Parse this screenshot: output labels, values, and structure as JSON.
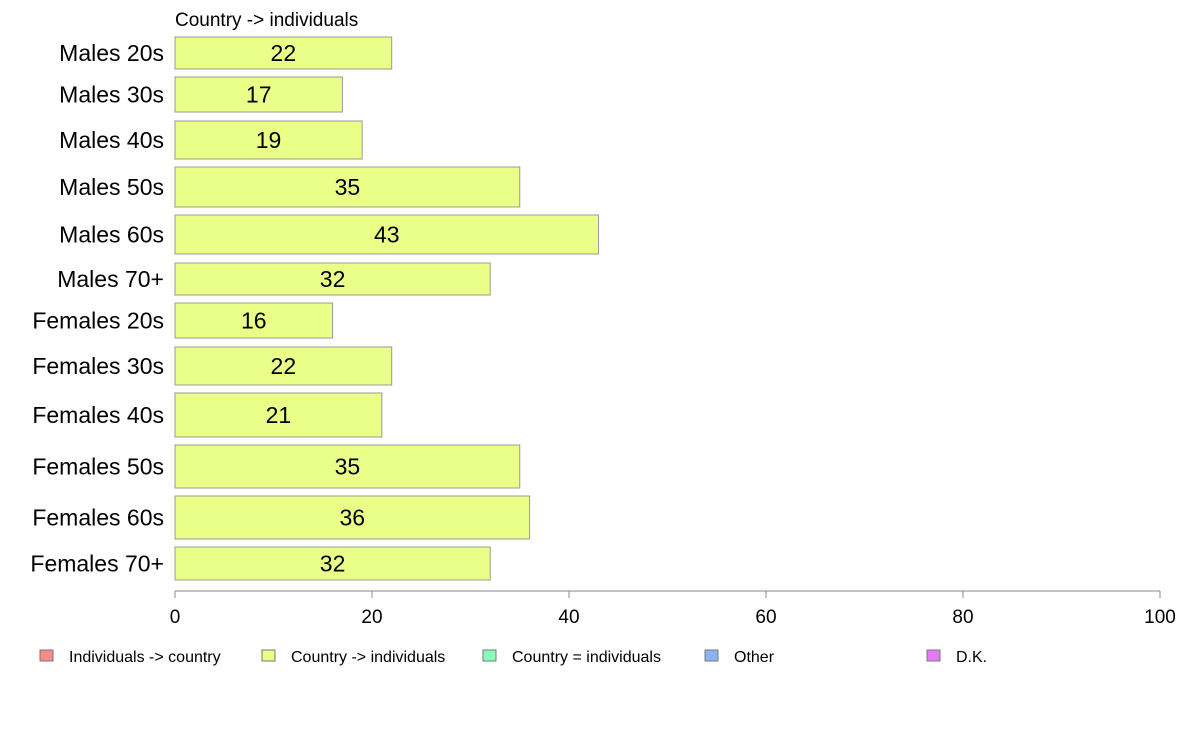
{
  "chart_data": {
    "type": "bar",
    "orientation": "horizontal",
    "panel_title": "Country -> individuals",
    "categories": [
      "Males 20s",
      "Males 30s",
      "Males 40s",
      "Males 50s",
      "Males 60s",
      "Males 70+",
      "Females 20s",
      "Females 30s",
      "Females 40s",
      "Females 50s",
      "Females 60s",
      "Females 70+"
    ],
    "series": [
      {
        "name": "Country -> individuals",
        "color": "#EAFF88",
        "values": [
          22,
          17,
          19,
          35,
          43,
          32,
          16,
          22,
          21,
          35,
          36,
          32
        ],
        "labels": [
          "22",
          "17",
          "19",
          "35",
          "43",
          "32",
          "16",
          "22",
          "21",
          "35",
          "36",
          "32"
        ]
      }
    ],
    "xlim": [
      0,
      100
    ],
    "x_ticks": [
      "0",
      "20",
      "40",
      "60",
      "80",
      "100"
    ],
    "grid": false,
    "legend_position": "bottom",
    "legend": [
      {
        "label": "Individuals -> country",
        "color": "#F88A8A"
      },
      {
        "label": "Country -> individuals",
        "color": "#EAFF88"
      },
      {
        "label": "Country = individuals",
        "color": "#88FFBB"
      },
      {
        "label": "Other",
        "color": "#88B4F5"
      },
      {
        "label": "D.K.",
        "color": "#E57AF5"
      }
    ]
  }
}
